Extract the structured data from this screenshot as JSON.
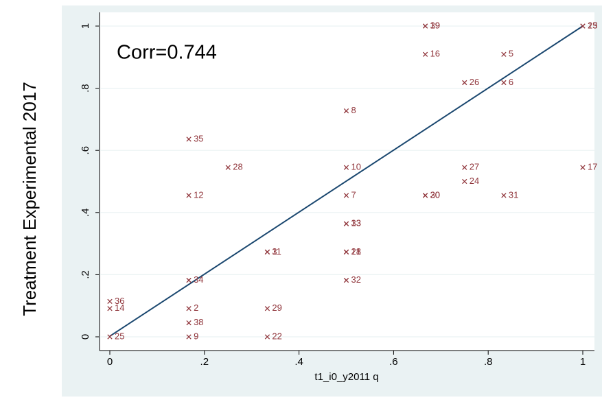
{
  "chart_data": {
    "type": "scatter",
    "x_label": "t1_i0_y2011 q",
    "y_label": "Treatment Experimental 2017",
    "annotation": "Corr=0.744",
    "xlim": [
      0,
      1
    ],
    "ylim": [
      0,
      1
    ],
    "xticks": [
      0,
      {
        "value": 0.2,
        "label": ".2"
      },
      {
        "value": 0.4,
        "label": ".4"
      },
      {
        "value": 0.6,
        "label": ".6"
      },
      {
        "value": 0.8,
        "label": ".8"
      },
      1
    ],
    "yticks": [
      0,
      {
        "value": 0.2,
        "label": ".2"
      },
      {
        "value": 0.4,
        "label": ".4"
      },
      {
        "value": 0.6,
        "label": ".6"
      },
      {
        "value": 0.8,
        "label": ".8"
      },
      1
    ],
    "grid": true,
    "color": "#90353b",
    "x": [
      0.667,
      0.667,
      1,
      1,
      0.667,
      0.833,
      0.75,
      0.833,
      0.5,
      0.167,
      0.25,
      0.5,
      0.75,
      1,
      0.75,
      0.167,
      0.5,
      0.667,
      0.667,
      0.833,
      0.5,
      0.5,
      0.333,
      0.333,
      0.5,
      0.5,
      0.167,
      0.5,
      0,
      0,
      0.167,
      0.333,
      0.167,
      0,
      0.167,
      0.333
    ],
    "values": [
      1,
      1,
      1,
      1,
      0.909,
      0.909,
      0.818,
      0.818,
      0.727,
      0.636,
      0.545,
      0.545,
      0.545,
      0.545,
      0.5,
      0.455,
      0.455,
      0.455,
      0.455,
      0.455,
      0.364,
      0.364,
      0.273,
      0.273,
      0.273,
      0.273,
      0.182,
      0.182,
      0.114,
      0.091,
      0.091,
      0.091,
      0.045,
      0,
      0,
      0
    ],
    "point_labels": [
      "19",
      "39",
      "15",
      "23",
      "16",
      "5",
      "26",
      "6",
      "8",
      "35",
      "28",
      "10",
      "27",
      "17",
      "24",
      "12",
      "7",
      "20",
      "30",
      "31",
      "13",
      "33",
      "3",
      "11",
      "18",
      "21",
      "34",
      "32",
      "36",
      "14",
      "2",
      "29",
      "38",
      "25",
      "9",
      "22"
    ],
    "fit_line": {
      "color": "#1a476f",
      "x": [
        0,
        1
      ],
      "values": [
        0.002,
        1
      ]
    }
  }
}
